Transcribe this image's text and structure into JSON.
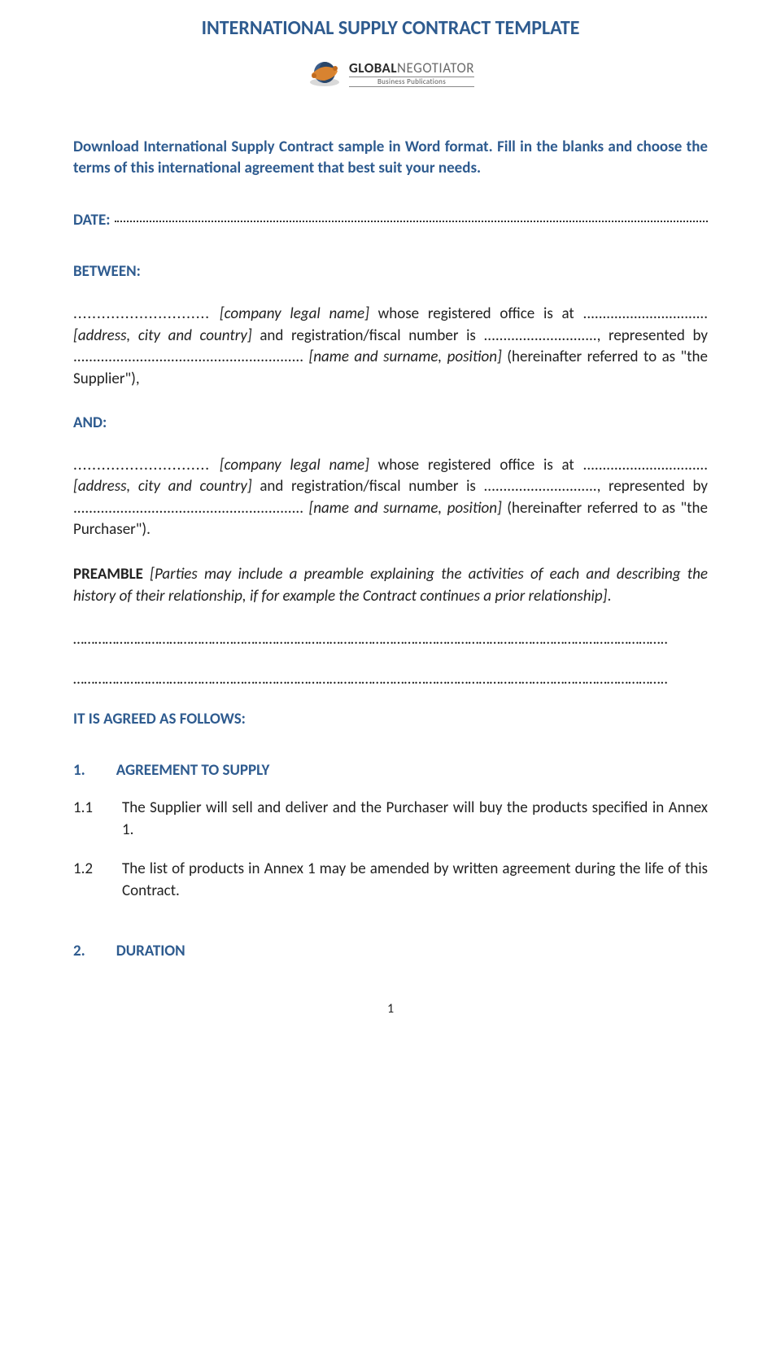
{
  "colors": {
    "accent": "#2e5b8f",
    "body_text": "#222222",
    "background": "#ffffff",
    "logo_orange": "#e2872d",
    "logo_blue": "#3b5d8a"
  },
  "title": "INTERNATIONAL SUPPLY CONTRACT TEMPLATE",
  "logo": {
    "brand_bold": "GLOBAL",
    "brand_light": "NEGOTIATOR",
    "subline": "Business Publications"
  },
  "intro": "Download International Supply Contract sample in Word format. Fill in the blanks and choose the terms of this international agreement that best suit your needs.",
  "labels": {
    "date": "DATE:",
    "between": "BETWEEN:",
    "and": "AND:",
    "agreed": "IT IS AGREED AS FOLLOWS:"
  },
  "supplier_para": {
    "p1": "............................. ",
    "i1": "[company legal name]",
    "p2": " whose registered office is at ................................ ",
    "i2": "[address, city and country]",
    "p3": " and registration/fiscal number is ............................., represented by ........................................................... ",
    "i3": "[name and surname, position]",
    "p4": " (hereinafter referred to as \"the Supplier\"),"
  },
  "purchaser_para": {
    "p1": "............................. ",
    "i1": "[company legal name]",
    "p2": " whose registered office is at ................................ ",
    "i2": "[address, city and country]",
    "p3": " and registration/fiscal number is ............................., represented by ........................................................... ",
    "i3": "[name and surname, position]",
    "p4": " (hereinafter referred to as \"the Purchaser\")."
  },
  "preamble": {
    "lead": "PREAMBLE",
    "ital": " [Parties may include a preamble explaining the activities of each and describing the history of their relationship, if for example the Contract continues a prior relationship]",
    "tail": "."
  },
  "clauses": [
    {
      "num": "1.",
      "title": "AGREEMENT TO SUPPLY",
      "items": [
        {
          "num": "1.1",
          "text": "The Supplier will sell and deliver and the Purchaser will buy the products specified in Annex 1."
        },
        {
          "num": "1.2",
          "text": "The list of products in Annex 1 may be amended by written agreement during the life of this Contract."
        }
      ]
    },
    {
      "num": "2.",
      "title": "DURATION",
      "items": []
    }
  ],
  "page_number": "1"
}
